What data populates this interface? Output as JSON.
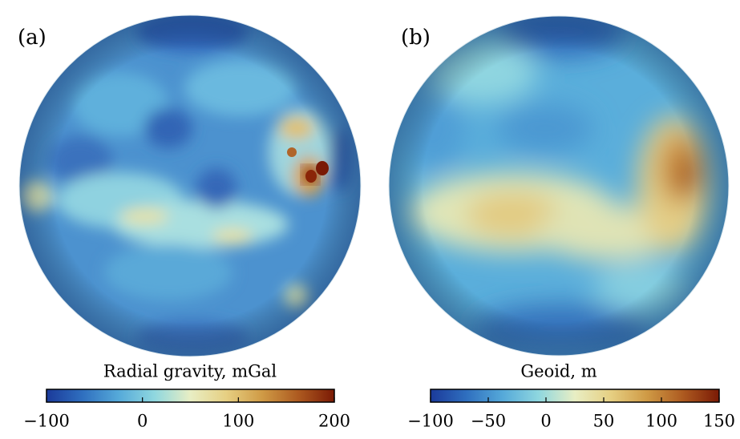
{
  "panels": [
    {
      "label": "(a)",
      "colorbar": {
        "title": "Radial gravity, mGal",
        "lim": [
          -100,
          200
        ],
        "ticks": [
          {
            "value": -100,
            "label": "−100"
          },
          0,
          100,
          200
        ]
      }
    },
    {
      "label": "(b)",
      "colorbar": {
        "title": "Geoid, m",
        "lim": [
          -100,
          150
        ],
        "ticks": [
          {
            "value": -100,
            "label": "−100"
          },
          {
            "value": -50,
            "label": "−50"
          },
          0,
          50,
          100,
          150
        ]
      }
    }
  ],
  "colormap": [
    "#1b3a9a",
    "#2f6fbf",
    "#55a9d9",
    "#8fd7df",
    "#e8eec4",
    "#e6cf82",
    "#cf9a45",
    "#ad5a20",
    "#7a1a05"
  ]
}
